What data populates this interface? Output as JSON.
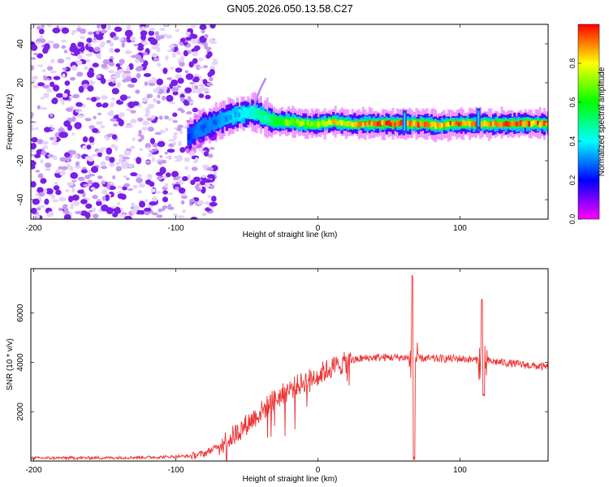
{
  "title": "GN05.2026.050.13.58.C27",
  "chart_data": [
    {
      "type": "heatmap",
      "name": "spectrogram",
      "xlabel": "Height of straight line (km)",
      "ylabel": "Frequency (Hz)",
      "xlim": [
        -202,
        162
      ],
      "ylim": [
        -50,
        50
      ],
      "xticks": [
        -200,
        -100,
        0,
        100
      ],
      "yticks": [
        -40,
        -20,
        0,
        20,
        40
      ],
      "colorbar": {
        "label": "Normalized spectral amplitude",
        "range": [
          0,
          1
        ],
        "ticks": [
          "0.0",
          "0.2",
          "0.4",
          "0.6",
          "0.8"
        ],
        "colors": [
          "#ff00ff",
          "#0000ff",
          "#00ffff",
          "#00ff00",
          "#ffff00",
          "#ff0000"
        ]
      },
      "noise_region": {
        "x": [
          -202,
          -72
        ],
        "amplitude": 0.1
      },
      "ridge": [
        {
          "x": -92,
          "y": -8,
          "amp": 0.25
        },
        {
          "x": -85,
          "y": -4,
          "amp": 0.3
        },
        {
          "x": -75,
          "y": -1,
          "amp": 0.3
        },
        {
          "x": -65,
          "y": 2,
          "amp": 0.35
        },
        {
          "x": -55,
          "y": 4,
          "amp": 0.4
        },
        {
          "x": -45,
          "y": 5,
          "amp": 0.45
        },
        {
          "x": -38,
          "y": 2,
          "amp": 0.5
        },
        {
          "x": -30,
          "y": 0,
          "amp": 0.65
        },
        {
          "x": -20,
          "y": 0,
          "amp": 0.75
        },
        {
          "x": -10,
          "y": -1,
          "amp": 0.7
        },
        {
          "x": 0,
          "y": -1,
          "amp": 0.75
        },
        {
          "x": 10,
          "y": 0,
          "amp": 0.85
        },
        {
          "x": 20,
          "y": -1,
          "amp": 0.8
        },
        {
          "x": 30,
          "y": -1,
          "amp": 0.9
        },
        {
          "x": 45,
          "y": -1,
          "amp": 0.95
        },
        {
          "x": 60,
          "y": -1,
          "amp": 0.95
        },
        {
          "x": 75,
          "y": -1,
          "amp": 0.95
        },
        {
          "x": 85,
          "y": -2,
          "amp": 0.85
        },
        {
          "x": 95,
          "y": -1,
          "amp": 0.95
        },
        {
          "x": 110,
          "y": -1,
          "amp": 0.95
        },
        {
          "x": 125,
          "y": -1,
          "amp": 0.95
        },
        {
          "x": 140,
          "y": -1,
          "amp": 0.95
        },
        {
          "x": 162,
          "y": -1,
          "amp": 0.95
        }
      ],
      "spike": [
        {
          "x": -45,
          "y": 8
        },
        {
          "x": -41,
          "y": 16
        },
        {
          "x": -37,
          "y": 22
        }
      ],
      "vertical_bars": [
        {
          "x": 61,
          "y_min": -6,
          "y_max": 6
        },
        {
          "x": 113,
          "y_min": -4,
          "y_max": 7
        }
      ]
    },
    {
      "type": "line",
      "name": "snr",
      "xlabel": "Height of straight line (km)",
      "ylabel": "SNR (10 * v/v)",
      "xlim": [
        -202,
        162
      ],
      "ylim": [
        0,
        7800
      ],
      "xticks": [
        -200,
        -100,
        0,
        100
      ],
      "yticks": [
        2000,
        4000,
        6000
      ],
      "color": "#ee3333",
      "series": [
        {
          "x": -202,
          "y": 120
        },
        {
          "x": -150,
          "y": 130
        },
        {
          "x": -110,
          "y": 160
        },
        {
          "x": -90,
          "y": 200
        },
        {
          "x": -80,
          "y": 300
        },
        {
          "x": -70,
          "y": 600
        },
        {
          "x": -60,
          "y": 1000
        },
        {
          "x": -50,
          "y": 1500
        },
        {
          "x": -40,
          "y": 2000
        },
        {
          "x": -30,
          "y": 2500
        },
        {
          "x": -20,
          "y": 2900
        },
        {
          "x": -10,
          "y": 3200
        },
        {
          "x": 0,
          "y": 3500
        },
        {
          "x": 10,
          "y": 3800
        },
        {
          "x": 20,
          "y": 4000
        },
        {
          "x": 30,
          "y": 4150
        },
        {
          "x": 40,
          "y": 4200
        },
        {
          "x": 60,
          "y": 4200
        },
        {
          "x": 80,
          "y": 4150
        },
        {
          "x": 100,
          "y": 4150
        },
        {
          "x": 110,
          "y": 4100
        },
        {
          "x": 120,
          "y": 4050
        },
        {
          "x": 130,
          "y": 4000
        },
        {
          "x": 145,
          "y": 3900
        },
        {
          "x": 162,
          "y": 3800
        }
      ],
      "spikes": [
        {
          "x": 67,
          "up": 7700,
          "down": 0
        },
        {
          "x": 116,
          "up": 6700,
          "down": 2600
        }
      ]
    }
  ]
}
